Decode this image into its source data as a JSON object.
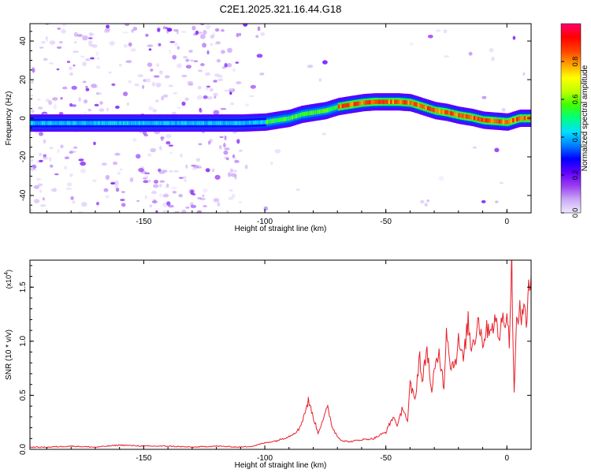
{
  "figure_title": "C2E1.2025.321.16.44.G18",
  "chart_data": [
    {
      "type": "heatmap",
      "xlabel": "Height of straight line (km)",
      "ylabel": "Frequency (Hz)",
      "xlim": [
        -197,
        10
      ],
      "ylim": [
        -49,
        49
      ],
      "x_ticks": [
        -150,
        -100,
        -50,
        0
      ],
      "y_ticks": [
        -40,
        -20,
        0,
        20,
        40
      ],
      "colorbar": {
        "label": "Normalized spectral amplitude",
        "range": [
          0,
          1
        ],
        "ticks": [
          "0.0",
          "0.2",
          "0.4",
          "0.6",
          "0.8"
        ],
        "colors": [
          "#f0e8ff",
          "#c9a8f5",
          "#9a3df0",
          "#6000ff",
          "#0000ff",
          "#0080ff",
          "#00e0ff",
          "#00ff80",
          "#40ff00",
          "#c0ff00",
          "#ffff00",
          "#ffa000",
          "#ff4000",
          "#ff0000",
          "#ff0070"
        ]
      },
      "ridge": {
        "x": [
          -197,
          -180,
          -160,
          -140,
          -120,
          -110,
          -100,
          -95,
          -90,
          -85,
          -80,
          -75,
          -70,
          -65,
          -60,
          -55,
          -50,
          -45,
          -40,
          -35,
          -30,
          -25,
          -20,
          -15,
          -10,
          -5,
          0,
          5,
          10
        ],
        "y": [
          -2.5,
          -2.5,
          -2.5,
          -2.5,
          -2.5,
          -2.5,
          -2,
          -1,
          0,
          2,
          3,
          4,
          6,
          7,
          8,
          8.5,
          8.5,
          8.5,
          8,
          6,
          4,
          3,
          1.5,
          0.5,
          -1,
          -1.5,
          -2,
          0,
          0
        ]
      }
    },
    {
      "type": "line",
      "xlabel": "Height of straight line (km)",
      "ylabel": "SNR (10 * v/v)",
      "multiplier_label": "(x10",
      "multiplier_exp": "4",
      "xlim": [
        -197,
        10
      ],
      "ylim": [
        0,
        1.75
      ],
      "x_ticks": [
        -150,
        -100,
        -50,
        0
      ],
      "y_ticks": [
        0.0,
        0.5,
        1.0,
        1.5
      ],
      "series": [
        {
          "color": "#e8202a",
          "x": [
            -197,
            -190,
            -180,
            -170,
            -160,
            -150,
            -140,
            -130,
            -120,
            -110,
            -105,
            -100,
            -95,
            -90,
            -86,
            -84,
            -82,
            -80,
            -78,
            -76,
            -74,
            -72,
            -70,
            -68,
            -65,
            -60,
            -55,
            -50,
            -47,
            -45,
            -43,
            -41,
            -40,
            -38,
            -36,
            -35,
            -33,
            -31,
            -30,
            -28,
            -26,
            -25,
            -23,
            -21,
            -20,
            -18,
            -16,
            -15,
            -13,
            -12,
            -10,
            -8,
            -6,
            -5,
            -3,
            -2,
            0,
            1,
            2,
            3,
            4,
            5,
            6,
            7,
            8,
            9,
            10
          ],
          "y": [
            0.02,
            0.02,
            0.03,
            0.02,
            0.04,
            0.03,
            0.03,
            0.02,
            0.03,
            0.02,
            0.03,
            0.06,
            0.08,
            0.12,
            0.18,
            0.3,
            0.45,
            0.3,
            0.15,
            0.28,
            0.38,
            0.2,
            0.12,
            0.08,
            0.07,
            0.09,
            0.1,
            0.16,
            0.3,
            0.22,
            0.4,
            0.25,
            0.6,
            0.45,
            0.88,
            0.6,
            0.95,
            0.5,
            0.72,
            0.9,
            0.58,
            1.12,
            0.75,
            0.85,
            1.0,
            0.82,
            1.2,
            0.95,
            1.05,
            1.22,
            1.0,
            1.12,
            1.15,
            1.18,
            1.05,
            1.2,
            1.25,
            1.0,
            1.75,
            0.5,
            1.15,
            1.3,
            1.2,
            1.4,
            1.1,
            1.45,
            1.6
          ]
        }
      ]
    }
  ]
}
